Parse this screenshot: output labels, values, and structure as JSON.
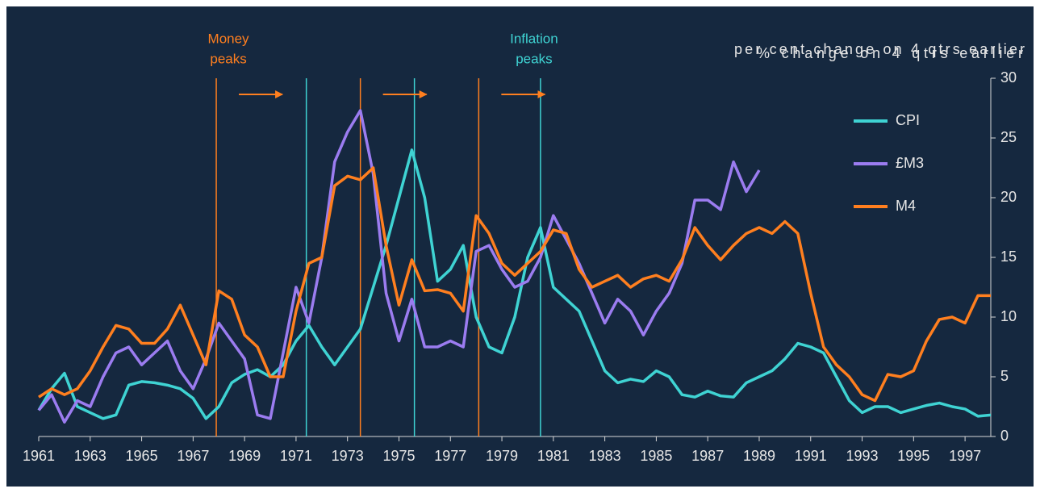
{
  "chart_data": {
    "type": "line",
    "y_label": "per cent change on 4 qtrs earlier",
    "y_label_overlay": "% change on 4 qtrs earlier",
    "annotations": {
      "money": {
        "lines": [
          "Money",
          "peaks"
        ],
        "color": "#ff7f1f",
        "x": [
          1967.9,
          1973.5,
          1978.1
        ]
      },
      "inflation": {
        "lines": [
          "Inflation",
          "peaks"
        ],
        "color": "#3fd3d3",
        "x": [
          1971.4,
          1975.6,
          1980.5
        ]
      }
    },
    "x": [
      1961,
      1961.5,
      1962,
      1962.5,
      1963,
      1963.5,
      1964,
      1964.5,
      1965,
      1965.5,
      1966,
      1966.5,
      1967,
      1967.5,
      1968,
      1968.5,
      1969,
      1969.5,
      1970,
      1970.5,
      1971,
      1971.5,
      1972,
      1972.5,
      1973,
      1973.5,
      1974,
      1974.5,
      1975,
      1975.5,
      1976,
      1976.5,
      1977,
      1977.5,
      1978,
      1978.5,
      1979,
      1979.5,
      1980,
      1980.5,
      1981,
      1981.5,
      1982,
      1982.5,
      1983,
      1983.5,
      1984,
      1984.5,
      1985,
      1985.5,
      1986,
      1986.5,
      1987,
      1987.5,
      1988,
      1988.5,
      1989,
      1989.5,
      1990,
      1990.5,
      1991,
      1991.5,
      1992,
      1992.5,
      1993,
      1993.5,
      1994,
      1994.5,
      1995,
      1995.5,
      1996,
      1996.5,
      1997,
      1997.5,
      1998
    ],
    "series": [
      {
        "name": "CPI",
        "color": "#3fd3d3",
        "values": [
          2.2,
          4.0,
          5.3,
          2.5,
          2.0,
          1.5,
          1.8,
          4.3,
          4.6,
          4.5,
          4.3,
          4.0,
          3.2,
          1.5,
          2.5,
          4.5,
          5.2,
          5.6,
          5.0,
          6.0,
          8.0,
          9.3,
          7.5,
          6.0,
          7.5,
          9.0,
          12.5,
          16.0,
          20.0,
          24.0,
          20.0,
          13.0,
          14.0,
          16.0,
          10.0,
          7.5,
          7.0,
          10.0,
          15.0,
          17.5,
          12.5,
          11.5,
          10.5,
          8.0,
          5.5,
          4.5,
          4.8,
          4.6,
          5.5,
          5.0,
          3.5,
          3.3,
          3.8,
          3.4,
          3.3,
          4.5,
          5.0,
          5.5,
          6.5,
          7.8,
          7.5,
          7.0,
          5.0,
          3.0,
          2.0,
          2.5,
          2.5,
          2.0,
          2.3,
          2.6,
          2.8,
          2.5,
          2.3,
          1.7,
          1.8
        ]
      },
      {
        "name": "£M3",
        "color": "#9b7cf0",
        "values": [
          2.2,
          3.5,
          1.2,
          3.0,
          2.5,
          5.0,
          7.0,
          7.5,
          6.0,
          7.0,
          8.0,
          5.5,
          4.0,
          6.5,
          9.5,
          8.0,
          6.5,
          1.8,
          1.5,
          7.0,
          12.5,
          9.5,
          15.0,
          23.0,
          25.5,
          27.3,
          22.0,
          12.0,
          8.0,
          11.5,
          7.5,
          7.5,
          8.0,
          7.5,
          15.5,
          16.0,
          14.0,
          12.5,
          13.0,
          15.0,
          18.5,
          16.5,
          14.5,
          12.0,
          9.5,
          11.5,
          10.5,
          8.5,
          10.5,
          12.0,
          14.5,
          19.8,
          19.8,
          19.0,
          23.0,
          20.5,
          22.3,
          null,
          null,
          null,
          null,
          null,
          null,
          null,
          null,
          null,
          null,
          null,
          null,
          null,
          null,
          null,
          null,
          null,
          null
        ]
      },
      {
        "name": "M4",
        "color": "#ff7f1f",
        "values": [
          3.3,
          4.0,
          3.5,
          4.0,
          5.5,
          7.5,
          9.3,
          9.0,
          7.8,
          7.8,
          9.0,
          11.0,
          8.5,
          6.0,
          12.2,
          11.5,
          8.5,
          7.5,
          5.0,
          5.0,
          10.5,
          14.5,
          15.0,
          21.0,
          21.8,
          21.5,
          22.5,
          16.0,
          11.0,
          14.8,
          12.2,
          12.3,
          12.0,
          10.5,
          18.5,
          17.0,
          14.5,
          13.5,
          14.5,
          15.5,
          17.3,
          17.0,
          14.0,
          12.5,
          13.0,
          13.5,
          12.5,
          13.2,
          13.5,
          13.0,
          14.8,
          17.5,
          16.0,
          14.8,
          16.0,
          17.0,
          17.5,
          17.0,
          18.0,
          17.0,
          12.0,
          7.5,
          6.0,
          5.0,
          3.5,
          3.0,
          5.2,
          5.0,
          5.5,
          8.0,
          9.8,
          10.0,
          9.5,
          11.8,
          11.8
        ]
      }
    ],
    "xlim": [
      1961,
      1998
    ],
    "xticks": [
      1961,
      1963,
      1965,
      1967,
      1969,
      1971,
      1973,
      1975,
      1977,
      1979,
      1981,
      1983,
      1985,
      1987,
      1989,
      1991,
      1993,
      1995,
      1997
    ],
    "ylim": [
      0,
      30
    ],
    "yticks": [
      0,
      5,
      10,
      15,
      20,
      25,
      30
    ],
    "y_axis_side": "right",
    "grid": false,
    "legend": "upper right"
  }
}
